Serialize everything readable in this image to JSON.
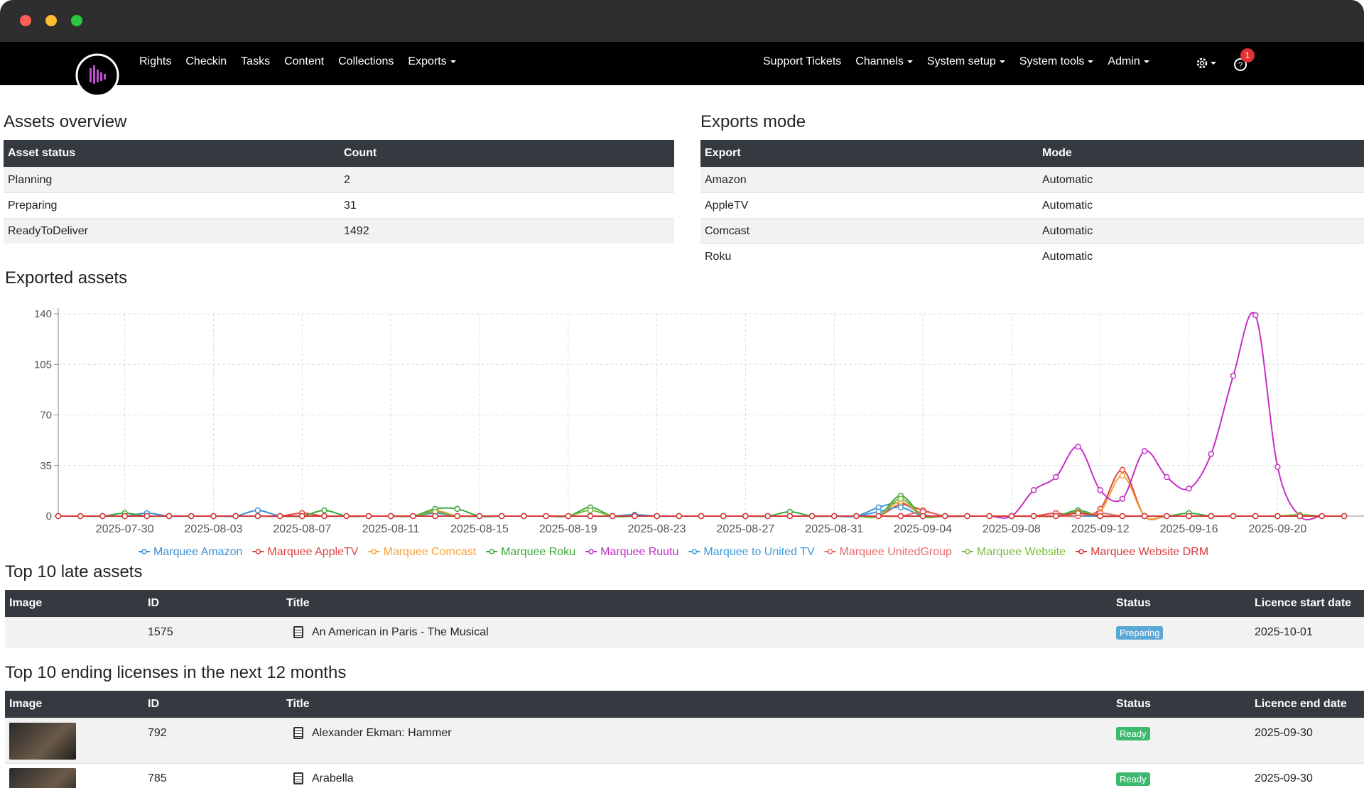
{
  "nav": {
    "left": [
      {
        "label": "Rights"
      },
      {
        "label": "Checkin"
      },
      {
        "label": "Tasks"
      },
      {
        "label": "Content"
      },
      {
        "label": "Collections"
      },
      {
        "label": "Exports",
        "dropdown": true
      }
    ],
    "right": [
      {
        "label": "Support Tickets"
      },
      {
        "label": "Channels",
        "dropdown": true
      },
      {
        "label": "System setup",
        "dropdown": true
      },
      {
        "label": "System tools",
        "dropdown": true
      },
      {
        "label": "Admin",
        "dropdown": true
      }
    ],
    "notification_count": 1
  },
  "assets_overview": {
    "title": "Assets overview",
    "columns": [
      "Asset status",
      "Count"
    ],
    "rows": [
      [
        "Planning",
        2
      ],
      [
        "Preparing",
        31
      ],
      [
        "ReadyToDeliver",
        1492
      ]
    ]
  },
  "exports_mode": {
    "title": "Exports mode",
    "columns": [
      "Export",
      "Mode"
    ],
    "rows": [
      [
        "Amazon",
        "Automatic"
      ],
      [
        "AppleTV",
        "Automatic"
      ],
      [
        "Comcast",
        "Automatic"
      ],
      [
        "Roku",
        "Automatic"
      ]
    ]
  },
  "chart_data": {
    "type": "line",
    "title": "Exported assets",
    "x": [
      "2025-07-27",
      "2025-07-28",
      "2025-07-29",
      "2025-07-30",
      "2025-07-31",
      "2025-08-01",
      "2025-08-02",
      "2025-08-03",
      "2025-08-04",
      "2025-08-05",
      "2025-08-06",
      "2025-08-07",
      "2025-08-08",
      "2025-08-09",
      "2025-08-10",
      "2025-08-11",
      "2025-08-12",
      "2025-08-13",
      "2025-08-14",
      "2025-08-15",
      "2025-08-16",
      "2025-08-17",
      "2025-08-18",
      "2025-08-19",
      "2025-08-20",
      "2025-08-21",
      "2025-08-22",
      "2025-08-23",
      "2025-08-24",
      "2025-08-25",
      "2025-08-26",
      "2025-08-27",
      "2025-08-28",
      "2025-08-29",
      "2025-08-30",
      "2025-08-31",
      "2025-09-01",
      "2025-09-02",
      "2025-09-03",
      "2025-09-04",
      "2025-09-05",
      "2025-09-06",
      "2025-09-07",
      "2025-09-08",
      "2025-09-09",
      "2025-09-10",
      "2025-09-11",
      "2025-09-12",
      "2025-09-13",
      "2025-09-14",
      "2025-09-15",
      "2025-09-16",
      "2025-09-17",
      "2025-09-18",
      "2025-09-19",
      "2025-09-20",
      "2025-09-21",
      "2025-09-22",
      "2025-09-23"
    ],
    "xlim": [
      "2025-07-27",
      "2025-09-23"
    ],
    "xticks": [
      "2025-07-30",
      "2025-08-03",
      "2025-08-07",
      "2025-08-11",
      "2025-08-15",
      "2025-08-19",
      "2025-08-23",
      "2025-08-27",
      "2025-08-31",
      "2025-09-04",
      "2025-09-08",
      "2025-09-12",
      "2025-09-16",
      "2025-09-20"
    ],
    "ylim": [
      0,
      140
    ],
    "yticks": [
      0,
      35,
      70,
      105,
      140
    ],
    "grid": true,
    "series": [
      {
        "name": "Marquee Amazon",
        "color": "#3b8fd4",
        "values": [
          0,
          0,
          0,
          0,
          2,
          0,
          0,
          0,
          0,
          4,
          0,
          0,
          0,
          0,
          0,
          0,
          0,
          2,
          0,
          0,
          0,
          0,
          0,
          0,
          0,
          0,
          1,
          0,
          0,
          0,
          0,
          0,
          0,
          0,
          0,
          0,
          0,
          6,
          9,
          1,
          0,
          0,
          0,
          0,
          0,
          0,
          0,
          0,
          0,
          0,
          0,
          0,
          0,
          0,
          0,
          0,
          0,
          0,
          0
        ]
      },
      {
        "name": "Marquee AppleTV",
        "color": "#e0443e",
        "values": [
          0,
          0,
          0,
          0,
          0,
          0,
          0,
          0,
          0,
          0,
          0,
          2,
          0,
          0,
          0,
          0,
          0,
          3,
          0,
          0,
          0,
          0,
          0,
          0,
          0,
          0,
          0,
          0,
          0,
          0,
          0,
          0,
          0,
          0,
          0,
          0,
          0,
          0,
          8,
          4,
          0,
          0,
          0,
          0,
          0,
          2,
          0,
          5,
          32,
          0,
          0,
          0,
          0,
          0,
          0,
          0,
          0,
          0,
          0
        ]
      },
      {
        "name": "Marquee Comcast",
        "color": "#f5a33b",
        "values": [
          0,
          0,
          0,
          0,
          0,
          0,
          0,
          0,
          0,
          0,
          0,
          0,
          0,
          0,
          0,
          0,
          0,
          4,
          0,
          0,
          0,
          0,
          0,
          0,
          0,
          0,
          0,
          0,
          0,
          0,
          0,
          0,
          0,
          0,
          0,
          0,
          0,
          0,
          10,
          0,
          0,
          0,
          0,
          0,
          0,
          0,
          0,
          3,
          28,
          0,
          0,
          0,
          0,
          0,
          0,
          0,
          0,
          0,
          0
        ]
      },
      {
        "name": "Marquee Roku",
        "color": "#3aa83a",
        "values": [
          0,
          0,
          0,
          2,
          0,
          0,
          0,
          0,
          0,
          0,
          0,
          0,
          4,
          0,
          0,
          0,
          0,
          5,
          5,
          0,
          0,
          0,
          0,
          0,
          6,
          0,
          0,
          0,
          0,
          0,
          0,
          0,
          0,
          3,
          0,
          0,
          0,
          0,
          14,
          0,
          0,
          0,
          0,
          0,
          0,
          0,
          4,
          0,
          0,
          0,
          0,
          2,
          0,
          0,
          0,
          0,
          0,
          0,
          0
        ]
      },
      {
        "name": "Marquee Ruutu",
        "color": "#c42fc4",
        "values": [
          0,
          0,
          0,
          0,
          0,
          0,
          0,
          0,
          0,
          0,
          0,
          0,
          0,
          0,
          0,
          0,
          0,
          0,
          0,
          0,
          0,
          0,
          0,
          0,
          0,
          0,
          0,
          0,
          0,
          0,
          0,
          0,
          0,
          0,
          0,
          0,
          0,
          0,
          0,
          0,
          0,
          0,
          0,
          0,
          18,
          27,
          48,
          18,
          12,
          45,
          27,
          19,
          43,
          97,
          139,
          34,
          0,
          0,
          0
        ]
      },
      {
        "name": "Marquee to United TV",
        "color": "#3d9bd8",
        "values": [
          0,
          0,
          0,
          0,
          0,
          0,
          0,
          0,
          0,
          0,
          0,
          0,
          0,
          0,
          0,
          0,
          0,
          0,
          0,
          0,
          0,
          0,
          0,
          0,
          0,
          0,
          0,
          0,
          0,
          0,
          0,
          0,
          0,
          0,
          0,
          0,
          0,
          3,
          6,
          0,
          0,
          0,
          0,
          0,
          0,
          0,
          0,
          0,
          0,
          0,
          0,
          0,
          0,
          0,
          0,
          0,
          0,
          0,
          0
        ]
      },
      {
        "name": "Marquee UnitedGroup",
        "color": "#e86b6b",
        "values": [
          0,
          0,
          0,
          0,
          0,
          0,
          0,
          0,
          0,
          0,
          0,
          0,
          0,
          0,
          0,
          0,
          0,
          0,
          0,
          0,
          0,
          0,
          0,
          0,
          0,
          0,
          0,
          0,
          0,
          0,
          0,
          0,
          0,
          0,
          0,
          0,
          0,
          0,
          0,
          3,
          0,
          0,
          0,
          0,
          0,
          0,
          0,
          2,
          0,
          0,
          0,
          0,
          0,
          0,
          0,
          0,
          0,
          0,
          0
        ]
      },
      {
        "name": "Marquee Website",
        "color": "#7ab83c",
        "values": [
          0,
          0,
          0,
          0,
          0,
          0,
          0,
          0,
          0,
          0,
          0,
          0,
          0,
          0,
          0,
          0,
          0,
          3,
          0,
          0,
          0,
          0,
          0,
          0,
          4,
          0,
          0,
          0,
          0,
          0,
          0,
          0,
          0,
          0,
          0,
          0,
          0,
          0,
          12,
          0,
          0,
          0,
          0,
          0,
          0,
          0,
          3,
          0,
          0,
          0,
          0,
          0,
          0,
          0,
          0,
          0,
          1,
          0,
          0
        ]
      },
      {
        "name": "Marquee Website DRM",
        "color": "#d8393a",
        "values": [
          0,
          0,
          0,
          0,
          0,
          0,
          0,
          0,
          0,
          0,
          0,
          0,
          0,
          0,
          0,
          0,
          0,
          0,
          0,
          0,
          0,
          0,
          0,
          0,
          0,
          0,
          0,
          0,
          0,
          0,
          0,
          0,
          0,
          0,
          0,
          0,
          0,
          0,
          0,
          0,
          0,
          0,
          0,
          0,
          0,
          0,
          2,
          0,
          0,
          0,
          0,
          0,
          0,
          0,
          0,
          0,
          0,
          0,
          0
        ]
      }
    ]
  },
  "late_assets": {
    "title": "Top 10 late assets",
    "columns": [
      "Image",
      "ID",
      "Title",
      "Status",
      "Licence start date"
    ],
    "rows": [
      {
        "image": false,
        "id": 1575,
        "title": "An American in Paris - The Musical",
        "status": "Preparing",
        "status_color": "#5aa8d6",
        "date": "2025-10-01"
      }
    ]
  },
  "ending_licenses": {
    "title": "Top 10 ending licenses in the next 12 months",
    "columns": [
      "Image",
      "ID",
      "Title",
      "Status",
      "Licence end date"
    ],
    "rows": [
      {
        "image": true,
        "id": 792,
        "title": "Alexander Ekman: Hammer",
        "status": "Ready",
        "status_color": "#3cb96f",
        "date": "2025-09-30"
      },
      {
        "image": true,
        "id": 785,
        "title": "Arabella",
        "status": "Ready",
        "status_color": "#3cb96f",
        "date": "2025-09-30"
      }
    ]
  }
}
